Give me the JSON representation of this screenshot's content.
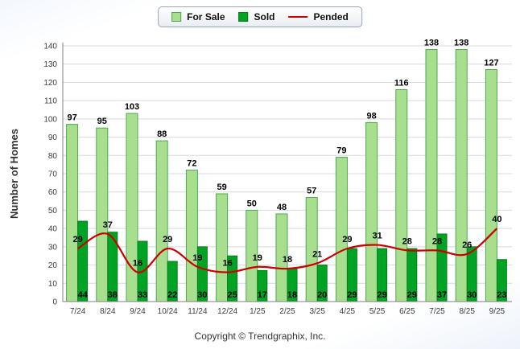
{
  "legend": {
    "for_sale": "For Sale",
    "sold": "Sold",
    "pended": "Pended"
  },
  "footer": {
    "copyright": "Copyright © Trendgraphix, Inc."
  },
  "colors": {
    "for_sale": "#A7DF8F",
    "for_sale_border": "#4DA851",
    "sold": "#00A323",
    "sold_border": "#0A7D1C",
    "pended": "#CC0000",
    "grid": "#D8D8D8",
    "axis": "#808080",
    "label": "#000000"
  },
  "chart_data": {
    "type": "bar",
    "title": "",
    "xlabel": "",
    "ylabel": "Number of Homes",
    "ylim": [
      0,
      140
    ],
    "ytick_step": 10,
    "grid": true,
    "legend_position": "top",
    "categories": [
      "7/24",
      "8/24",
      "9/24",
      "10/24",
      "11/24",
      "12/24",
      "1/25",
      "2/25",
      "3/25",
      "4/25",
      "5/25",
      "6/25",
      "7/25",
      "8/25",
      "9/25"
    ],
    "series": [
      {
        "name": "For Sale",
        "type": "bar",
        "values": [
          97,
          95,
          103,
          88,
          72,
          59,
          50,
          48,
          57,
          79,
          98,
          116,
          138,
          138,
          127
        ]
      },
      {
        "name": "Sold",
        "type": "bar",
        "values": [
          44,
          38,
          33,
          22,
          30,
          25,
          17,
          18,
          20,
          29,
          29,
          29,
          37,
          30,
          23
        ]
      },
      {
        "name": "Pended",
        "type": "line",
        "values": [
          29,
          37,
          16,
          29,
          19,
          16,
          19,
          18,
          21,
          29,
          31,
          28,
          28,
          26,
          40
        ]
      }
    ]
  }
}
